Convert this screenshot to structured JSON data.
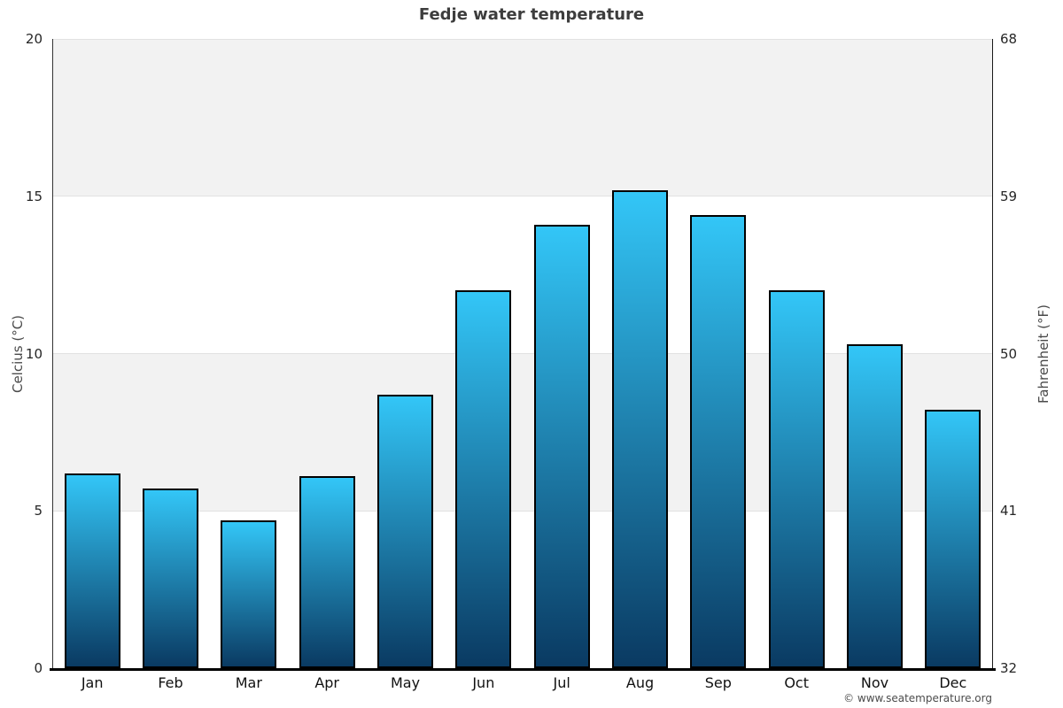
{
  "title": "Fedje water temperature",
  "footer": "© www.seatemperature.org",
  "chart_data": {
    "type": "bar",
    "title": "Fedje water temperature",
    "categories": [
      "Jan",
      "Feb",
      "Mar",
      "Apr",
      "May",
      "Jun",
      "Jul",
      "Aug",
      "Sep",
      "Oct",
      "Nov",
      "Dec"
    ],
    "values": [
      6.2,
      5.7,
      4.7,
      6.1,
      8.7,
      12.0,
      14.1,
      15.2,
      14.4,
      12.0,
      10.3,
      8.2
    ],
    "ylabel_left": "Celcius (°C)",
    "ylabel_right": "Fahrenheit (°F)",
    "yticks_left": [
      0,
      5,
      10,
      15,
      20
    ],
    "yticks_right": [
      32,
      41,
      50,
      59,
      68
    ],
    "ylim": [
      0,
      20
    ],
    "grid": "horizontal-bands",
    "legend": "none",
    "colors": {
      "bar_gradient_top": "#33c6f7",
      "bar_gradient_bottom": "#0a3a62",
      "bar_border": "#000000",
      "band_gray": "#f2f2f2",
      "gridline": "#e2e2e2",
      "title_text": "#3d3d3d",
      "axis_text": "#262626"
    }
  }
}
